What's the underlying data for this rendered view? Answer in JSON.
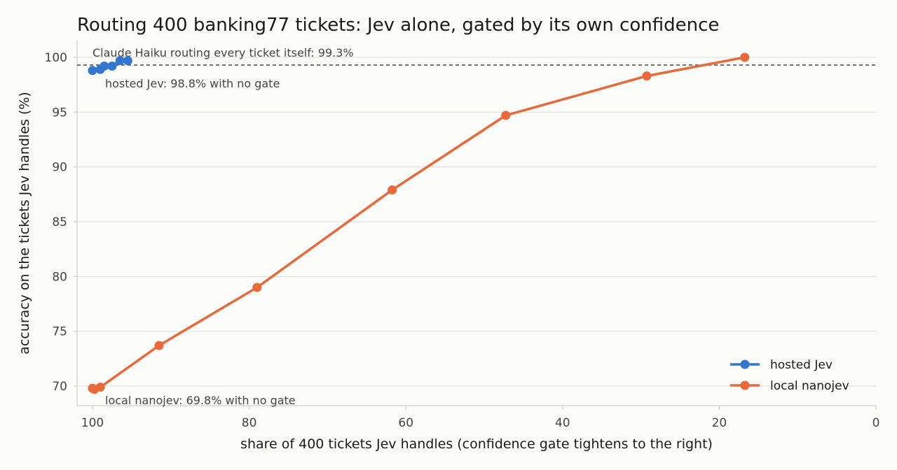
{
  "chart_data": {
    "type": "line",
    "title": "Routing 400 banking77 tickets: Jev alone, gated by its own confidence",
    "xlabel": "share of 400 tickets Jev handles (confidence gate tightens to the right)",
    "ylabel": "accuracy on the tickets Jev handles (%)",
    "xlim": [
      100,
      0
    ],
    "ylim": [
      68.2,
      101.6
    ],
    "xticks": [
      100,
      80,
      60,
      40,
      20,
      0
    ],
    "yticks": [
      70,
      75,
      80,
      85,
      90,
      95,
      100
    ],
    "grid": "horizontal",
    "legend_position": "bottom-right",
    "reference_line": {
      "y": 99.3,
      "label": "Claude Haiku routing every ticket itself: 99.3%"
    },
    "series": [
      {
        "name": "hosted Jev",
        "color": "#3177d0",
        "x": [
          100,
          99,
          98.5,
          97.5,
          96.5,
          95.5
        ],
        "y": [
          98.8,
          98.9,
          99.2,
          99.2,
          99.7,
          99.7
        ]
      },
      {
        "name": "local nanojev",
        "color": "#e8693a",
        "x": [
          100,
          99.75,
          99,
          91.5,
          79,
          61.75,
          47.25,
          29.25,
          16.75
        ],
        "y": [
          69.8,
          69.7,
          69.9,
          73.7,
          79.0,
          87.9,
          94.7,
          98.3,
          100.0
        ]
      }
    ],
    "annotations": [
      "hosted Jev: 98.8% with no gate",
      "local nanojev: 69.8% with no gate"
    ]
  }
}
